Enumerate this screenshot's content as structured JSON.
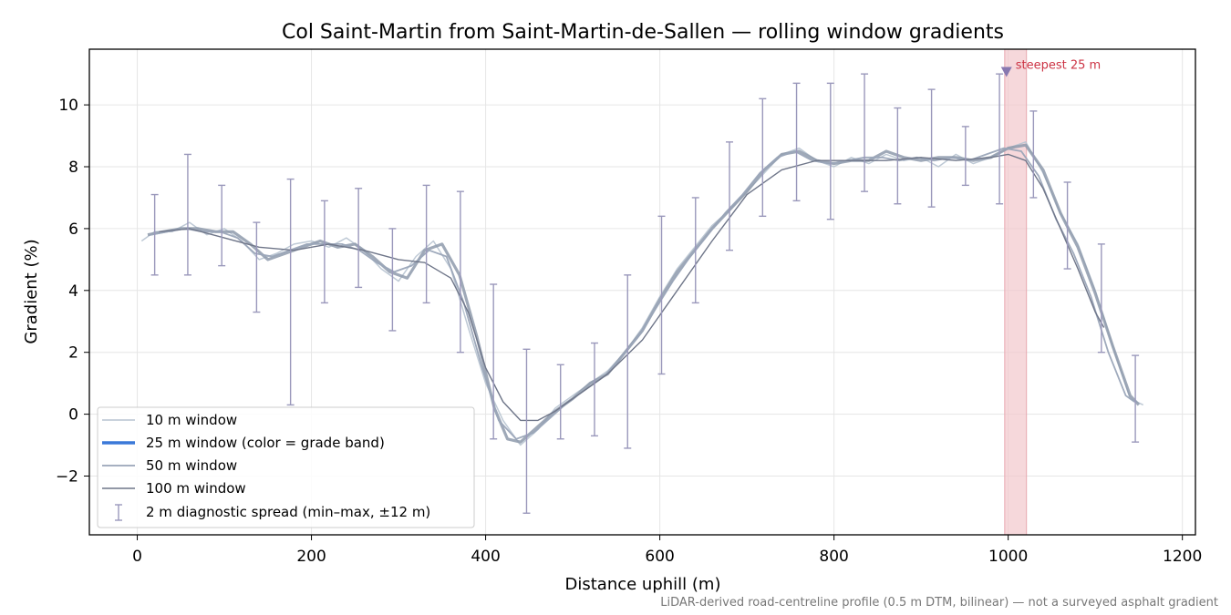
{
  "chart_data": {
    "type": "line",
    "title": "Col Saint-Martin from Saint-Martin-de-Sallen — rolling window gradients",
    "xlabel": "Distance uphill (m)",
    "ylabel": "Gradient (%)",
    "xlim": [
      -55,
      1215
    ],
    "ylim": [
      -3.9,
      11.8
    ],
    "xticks": [
      0,
      200,
      400,
      600,
      800,
      1000,
      1200
    ],
    "yticks": [
      -2,
      0,
      2,
      4,
      6,
      8,
      10
    ],
    "grid": true,
    "legend_position": "lower-left",
    "footnote": "LiDAR-derived road-centreline profile (0.5 m DTM, bilinear) — not a surveyed asphalt gradient",
    "colors": {
      "w10": "#b7c3d0",
      "w25": "#8e9aab",
      "w25_legend": "#3a78d8",
      "w50": "#9aa5b8",
      "w100": "#6f7689",
      "errorbar": "#9a98bb",
      "steepest_band": "#f2c8cc",
      "steepest_marker": "#8878b0",
      "annotation": "#cc3344"
    },
    "series": [
      {
        "name": "10 m window",
        "x": [
          5,
          20,
          40,
          60,
          80,
          100,
          120,
          140,
          160,
          180,
          200,
          220,
          240,
          260,
          280,
          300,
          320,
          340,
          360,
          380,
          400,
          420,
          440,
          460,
          480,
          500,
          520,
          540,
          560,
          580,
          600,
          620,
          640,
          660,
          680,
          700,
          720,
          740,
          760,
          780,
          800,
          820,
          840,
          860,
          880,
          900,
          920,
          940,
          960,
          980,
          1000,
          1020,
          1040,
          1060,
          1080,
          1100,
          1120,
          1140,
          1155
        ],
        "y": [
          5.6,
          5.9,
          5.9,
          6.2,
          5.8,
          6.0,
          5.6,
          5.0,
          5.2,
          5.5,
          5.6,
          5.4,
          5.7,
          5.3,
          4.7,
          4.3,
          5.1,
          5.6,
          4.7,
          2.8,
          1.0,
          -0.2,
          -1.0,
          -0.5,
          0.2,
          0.6,
          1.0,
          1.4,
          2.0,
          2.8,
          3.8,
          4.7,
          5.4,
          6.1,
          6.6,
          7.2,
          7.8,
          8.4,
          8.6,
          8.2,
          8.0,
          8.3,
          8.1,
          8.4,
          8.2,
          8.3,
          8.0,
          8.4,
          8.1,
          8.3,
          8.6,
          8.8,
          7.8,
          6.5,
          5.5,
          4.0,
          2.2,
          0.5,
          0.3
        ]
      },
      {
        "name": "25 m window (color = grade band)",
        "x": [
          12,
          30,
          50,
          70,
          90,
          110,
          130,
          150,
          170,
          190,
          210,
          230,
          250,
          270,
          290,
          310,
          330,
          350,
          370,
          390,
          410,
          425,
          440,
          460,
          480,
          500,
          520,
          540,
          560,
          580,
          600,
          620,
          640,
          660,
          680,
          700,
          720,
          740,
          760,
          780,
          800,
          820,
          840,
          860,
          880,
          900,
          920,
          940,
          960,
          980,
          1000,
          1020,
          1040,
          1060,
          1080,
          1100,
          1120,
          1140,
          1150
        ],
        "y": [
          5.8,
          5.9,
          6.0,
          6.0,
          5.9,
          5.9,
          5.5,
          5.0,
          5.2,
          5.4,
          5.6,
          5.4,
          5.5,
          5.1,
          4.6,
          4.4,
          5.3,
          5.5,
          4.5,
          2.5,
          0.2,
          -0.8,
          -0.9,
          -0.4,
          0.1,
          0.5,
          1.0,
          1.3,
          2.0,
          2.7,
          3.7,
          4.6,
          5.3,
          6.0,
          6.6,
          7.2,
          7.9,
          8.4,
          8.5,
          8.2,
          8.1,
          8.2,
          8.2,
          8.5,
          8.3,
          8.2,
          8.3,
          8.3,
          8.2,
          8.3,
          8.6,
          8.7,
          7.9,
          6.5,
          5.4,
          3.9,
          2.2,
          0.6,
          0.3
        ]
      },
      {
        "name": "50 m window",
        "x": [
          15,
          35,
          55,
          75,
          95,
          115,
          135,
          155,
          175,
          195,
          215,
          235,
          255,
          275,
          295,
          315,
          335,
          355,
          375,
          395,
          415,
          435,
          455,
          475,
          495,
          515,
          535,
          555,
          575,
          595,
          615,
          635,
          655,
          675,
          695,
          715,
          735,
          755,
          775,
          795,
          815,
          835,
          855,
          875,
          895,
          915,
          935,
          955,
          975,
          995,
          1015,
          1035,
          1055,
          1075,
          1095,
          1115,
          1135,
          1145
        ],
        "y": [
          5.8,
          5.9,
          6.0,
          5.9,
          5.9,
          5.7,
          5.2,
          5.1,
          5.3,
          5.5,
          5.5,
          5.5,
          5.3,
          4.9,
          4.6,
          4.8,
          5.3,
          5.1,
          3.6,
          1.6,
          -0.2,
          -0.8,
          -0.6,
          -0.1,
          0.4,
          0.8,
          1.2,
          1.8,
          2.5,
          3.4,
          4.3,
          5.1,
          5.8,
          6.5,
          7.1,
          7.8,
          8.3,
          8.5,
          8.2,
          8.1,
          8.2,
          8.3,
          8.3,
          8.2,
          8.3,
          8.2,
          8.3,
          8.2,
          8.4,
          8.6,
          8.5,
          7.7,
          6.3,
          5.2,
          3.8,
          2.0,
          0.6,
          0.4
        ]
      },
      {
        "name": "100 m window",
        "x": [
          25,
          60,
          100,
          140,
          180,
          220,
          260,
          300,
          330,
          360,
          380,
          400,
          420,
          440,
          460,
          480,
          500,
          540,
          580,
          620,
          660,
          700,
          740,
          780,
          820,
          860,
          900,
          940,
          980,
          1000,
          1020,
          1040,
          1060,
          1080,
          1100,
          1110
        ],
        "y": [
          5.9,
          6.0,
          5.7,
          5.4,
          5.3,
          5.5,
          5.3,
          5.0,
          4.9,
          4.4,
          3.3,
          1.5,
          0.4,
          -0.2,
          -0.2,
          0.1,
          0.5,
          1.3,
          2.4,
          4.0,
          5.6,
          7.1,
          7.9,
          8.2,
          8.2,
          8.2,
          8.3,
          8.2,
          8.3,
          8.4,
          8.2,
          7.3,
          6.0,
          4.7,
          3.3,
          2.8
        ]
      }
    ],
    "errorbars": {
      "name": "2 m diagnostic spread (min–max, ±12 m)",
      "x": [
        20,
        58,
        97,
        137,
        176,
        215,
        254,
        293,
        332,
        371,
        409,
        447,
        486,
        525,
        563,
        602,
        641,
        680,
        718,
        757,
        796,
        835,
        873,
        912,
        951,
        990,
        1029,
        1068,
        1107,
        1146
      ],
      "low": [
        4.5,
        4.5,
        4.8,
        3.3,
        0.3,
        3.6,
        4.1,
        2.7,
        3.6,
        2.0,
        -0.8,
        -3.2,
        -0.8,
        -0.7,
        -1.1,
        1.3,
        3.6,
        5.3,
        6.4,
        6.9,
        6.3,
        7.2,
        6.8,
        6.7,
        7.4,
        6.8,
        7.0,
        4.7,
        2.0,
        -0.9
      ],
      "high": [
        7.1,
        8.4,
        7.4,
        6.2,
        7.6,
        6.9,
        7.3,
        6.0,
        7.4,
        7.2,
        4.2,
        2.1,
        1.6,
        2.3,
        4.5,
        6.4,
        7.0,
        8.8,
        10.2,
        10.7,
        10.7,
        11.0,
        9.9,
        10.5,
        9.3,
        11.0,
        9.8,
        7.5,
        5.5,
        1.9
      ]
    },
    "steepest": {
      "label": "steepest 25 m",
      "x_start": 996,
      "x_end": 1021,
      "marker_x": 998,
      "marker_y": 11.05
    }
  }
}
